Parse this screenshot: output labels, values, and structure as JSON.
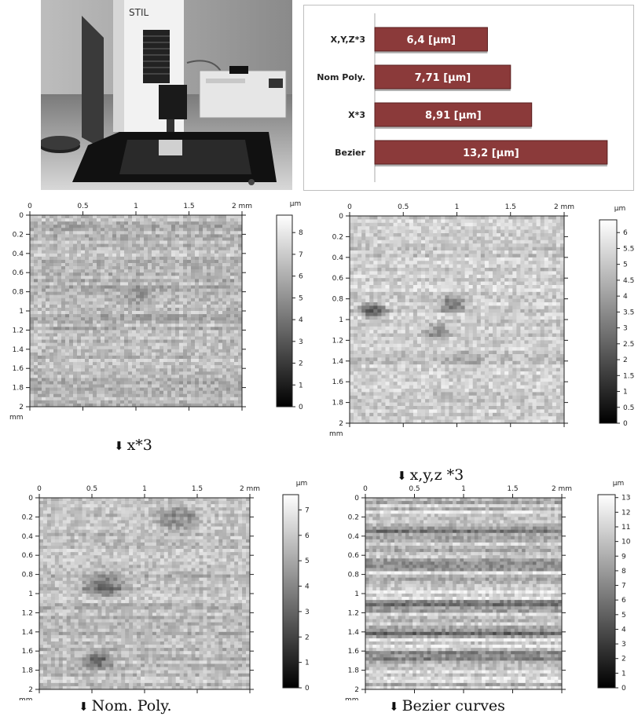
{
  "photo": {
    "brand_label": "STIL"
  },
  "chart_data": [
    {
      "type": "bar",
      "orientation": "horizontal",
      "categories": [
        "X,Y,Z*3",
        "Nom Poly.",
        "X*3",
        "Bezier"
      ],
      "values": [
        6.4,
        7.71,
        8.91,
        13.2
      ],
      "data_labels": [
        "6,4 [µm]",
        "7,71 [µm]",
        "8,91 [µm]",
        "13,2 [µm]"
      ],
      "unit": "µm",
      "bar_color": "#8b3a3a",
      "grid": false
    },
    {
      "type": "heatmap",
      "caption": "x*3",
      "x_unit": "mm",
      "y_unit": "mm",
      "xlim": [
        0,
        2
      ],
      "ylim": [
        0,
        2
      ],
      "x_ticks": [
        "0",
        "0.5",
        "1",
        "1.5",
        "2"
      ],
      "y_ticks": [
        "0",
        "0.2",
        "0.4",
        "0.6",
        "0.8",
        "1",
        "1.2",
        "1.4",
        "1.6",
        "1.8",
        "2"
      ],
      "colorbar_unit": "µm",
      "colorbar_range": [
        0,
        8.8
      ],
      "colorbar_ticks": [
        "0",
        "1",
        "2",
        "3",
        "4",
        "5",
        "6",
        "7",
        "8"
      ],
      "colormap": "grayscale"
    },
    {
      "type": "heatmap",
      "caption": "x,y,z *3",
      "x_unit": "mm",
      "y_unit": "mm",
      "xlim": [
        0,
        2
      ],
      "ylim": [
        0,
        2
      ],
      "x_ticks": [
        "0",
        "0.5",
        "1",
        "1.5",
        "2"
      ],
      "y_ticks": [
        "0",
        "0.2",
        "0.4",
        "0.6",
        "0.8",
        "1",
        "1.2",
        "1.4",
        "1.6",
        "1.8",
        "2"
      ],
      "colorbar_unit": "µm",
      "colorbar_range": [
        0,
        6.4
      ],
      "colorbar_ticks": [
        "0",
        "0.5",
        "1",
        "1.5",
        "2",
        "2.5",
        "3",
        "3.5",
        "4",
        "4.5",
        "5",
        "5.5",
        "6"
      ],
      "colormap": "grayscale"
    },
    {
      "type": "heatmap",
      "caption": "Nom. Poly.",
      "x_unit": "mm",
      "y_unit": "mm",
      "xlim": [
        0,
        2
      ],
      "ylim": [
        0,
        2
      ],
      "x_ticks": [
        "0",
        "0.5",
        "1",
        "1.5",
        "2"
      ],
      "y_ticks": [
        "0",
        "0.2",
        "0.4",
        "0.6",
        "0.8",
        "1",
        "1.2",
        "1.4",
        "1.6",
        "1.8",
        "2"
      ],
      "colorbar_unit": "µm",
      "colorbar_range": [
        0,
        7.6
      ],
      "colorbar_ticks": [
        "0",
        "1",
        "2",
        "3",
        "4",
        "5",
        "6",
        "7"
      ],
      "colormap": "grayscale"
    },
    {
      "type": "heatmap",
      "caption": "Bezier curves",
      "x_unit": "mm",
      "y_unit": "mm",
      "xlim": [
        0,
        2
      ],
      "ylim": [
        0,
        2
      ],
      "x_ticks": [
        "0",
        "0.5",
        "1",
        "1.5",
        "2"
      ],
      "y_ticks": [
        "0",
        "0.2",
        "0.4",
        "0.6",
        "0.8",
        "1",
        "1.2",
        "1.4",
        "1.6",
        "1.8",
        "2"
      ],
      "colorbar_unit": "µm",
      "colorbar_range": [
        0,
        13.2
      ],
      "colorbar_ticks": [
        "0",
        "1",
        "2",
        "3",
        "4",
        "5",
        "6",
        "7",
        "8",
        "9",
        "10",
        "11",
        "12",
        "13"
      ],
      "colormap": "grayscale"
    }
  ]
}
